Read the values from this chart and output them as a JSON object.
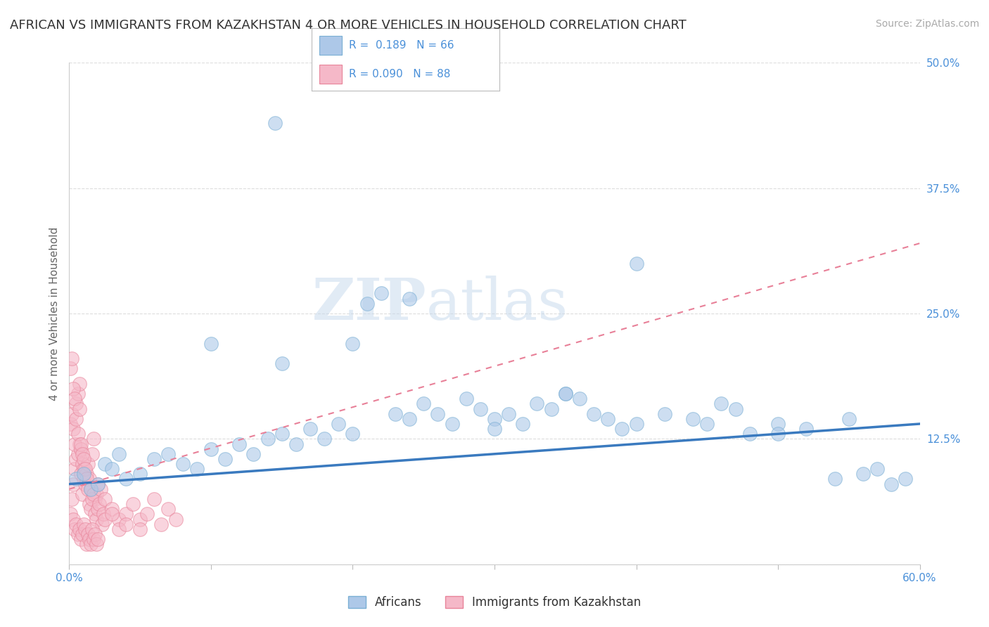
{
  "title": "AFRICAN VS IMMIGRANTS FROM KAZAKHSTAN 4 OR MORE VEHICLES IN HOUSEHOLD CORRELATION CHART",
  "source": "Source: ZipAtlas.com",
  "ylabel": "4 or more Vehicles in Household",
  "xlim": [
    0,
    60
  ],
  "ylim": [
    0,
    50
  ],
  "yticks": [
    0,
    12.5,
    25.0,
    37.5,
    50.0
  ],
  "ytick_labels": [
    "",
    "12.5%",
    "25.0%",
    "37.5%",
    "50.0%"
  ],
  "xticks": [
    0,
    10,
    20,
    30,
    40,
    50,
    60
  ],
  "series": [
    {
      "name": "Africans",
      "R": 0.189,
      "N": 66,
      "color": "#adc8e8",
      "edge_color": "#7aafd4",
      "trend_color": "#3a7abf",
      "trend_style": "solid"
    },
    {
      "name": "Immigrants from Kazakhstan",
      "R": 0.09,
      "N": 88,
      "color": "#f5b8c8",
      "edge_color": "#e8849a",
      "trend_color": "#e88098",
      "trend_style": "dashed"
    }
  ],
  "africans_x": [
    0.5,
    1.0,
    1.5,
    2.0,
    2.5,
    3.0,
    3.5,
    4.0,
    5.0,
    6.0,
    7.0,
    8.0,
    9.0,
    10.0,
    11.0,
    12.0,
    13.0,
    14.0,
    15.0,
    16.0,
    17.0,
    18.0,
    19.0,
    20.0,
    21.0,
    22.0,
    23.0,
    24.0,
    25.0,
    26.0,
    27.0,
    28.0,
    29.0,
    30.0,
    31.0,
    32.0,
    33.0,
    34.0,
    35.0,
    36.0,
    37.0,
    38.0,
    39.0,
    40.0,
    42.0,
    44.0,
    46.0,
    48.0,
    50.0,
    52.0,
    54.0,
    56.0,
    58.0,
    59.0,
    20.0,
    24.0,
    30.0,
    35.0,
    40.0,
    45.0,
    50.0,
    55.0,
    10.0,
    15.0,
    47.0,
    57.0
  ],
  "africans_y": [
    8.5,
    9.0,
    7.5,
    8.0,
    10.0,
    9.5,
    11.0,
    8.5,
    9.0,
    10.5,
    11.0,
    10.0,
    9.5,
    11.5,
    10.5,
    12.0,
    11.0,
    12.5,
    13.0,
    12.0,
    13.5,
    12.5,
    14.0,
    13.0,
    26.0,
    27.0,
    15.0,
    14.5,
    16.0,
    15.0,
    14.0,
    16.5,
    15.5,
    14.5,
    15.0,
    14.0,
    16.0,
    15.5,
    17.0,
    16.5,
    15.0,
    14.5,
    13.5,
    14.0,
    15.0,
    14.5,
    16.0,
    13.0,
    14.0,
    13.5,
    8.5,
    9.0,
    8.0,
    8.5,
    22.0,
    26.5,
    13.5,
    17.0,
    30.0,
    14.0,
    13.0,
    14.5,
    22.0,
    20.0,
    15.5,
    9.5
  ],
  "kazakhstan_x": [
    0.1,
    0.2,
    0.3,
    0.4,
    0.5,
    0.6,
    0.7,
    0.8,
    0.9,
    1.0,
    0.1,
    0.2,
    0.3,
    0.4,
    0.5,
    0.6,
    0.7,
    0.8,
    0.9,
    1.0,
    1.1,
    1.2,
    1.3,
    1.4,
    1.5,
    1.6,
    1.7,
    1.8,
    1.9,
    2.0,
    0.1,
    0.2,
    0.3,
    0.4,
    0.5,
    0.6,
    0.7,
    0.8,
    0.9,
    1.0,
    1.1,
    1.2,
    1.3,
    1.4,
    1.5,
    1.6,
    1.7,
    1.8,
    1.9,
    2.0,
    2.1,
    2.2,
    2.3,
    2.4,
    2.5,
    3.0,
    3.5,
    4.0,
    4.5,
    5.0,
    5.5,
    6.0,
    6.5,
    7.0,
    7.5,
    0.3,
    0.4,
    0.5,
    0.6,
    0.7,
    0.8,
    0.9,
    1.0,
    1.1,
    1.2,
    1.3,
    1.4,
    1.5,
    1.6,
    1.7,
    1.8,
    1.9,
    2.0,
    2.5,
    3.0,
    3.5,
    4.0,
    5.0
  ],
  "kazakhstan_y": [
    5.0,
    6.5,
    8.0,
    9.5,
    10.5,
    11.0,
    12.0,
    9.0,
    7.0,
    8.5,
    14.0,
    15.0,
    13.5,
    12.0,
    16.0,
    17.0,
    18.0,
    11.5,
    10.0,
    9.5,
    8.0,
    9.0,
    10.0,
    8.5,
    7.5,
    11.0,
    12.5,
    6.5,
    7.0,
    8.0,
    19.5,
    20.5,
    17.5,
    16.5,
    14.5,
    13.0,
    15.5,
    12.0,
    11.0,
    10.5,
    9.5,
    8.5,
    7.5,
    6.0,
    5.5,
    6.5,
    7.0,
    5.0,
    4.5,
    5.5,
    6.0,
    7.5,
    4.0,
    5.0,
    6.5,
    5.5,
    4.5,
    5.0,
    6.0,
    4.5,
    5.0,
    6.5,
    4.0,
    5.5,
    4.5,
    4.5,
    3.5,
    4.0,
    3.0,
    3.5,
    2.5,
    3.0,
    4.0,
    3.5,
    2.0,
    3.0,
    2.5,
    2.0,
    3.5,
    2.5,
    3.0,
    2.0,
    2.5,
    4.5,
    5.0,
    3.5,
    4.0,
    3.5
  ],
  "outlier_blue_x": 14.5,
  "outlier_blue_y": 44.0,
  "background_color": "#ffffff",
  "grid_color": "#dddddd",
  "title_fontsize": 13,
  "axis_label_color": "#666666",
  "tick_label_color": "#4a90d9",
  "legend_R_color": "#4a90d9"
}
